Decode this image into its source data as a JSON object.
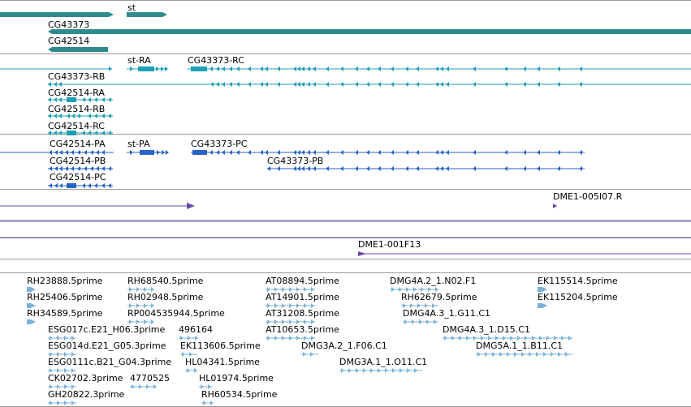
{
  "colors": {
    "gene": "#2e8b8b",
    "transcript": "#1ea0b4",
    "protein": "#2a63c8",
    "bac": "#6a49a8",
    "est": "#7ab3d8",
    "separator": "#9a9a9a"
  },
  "gene_labels": [
    "st",
    "CG43373",
    "CG42514"
  ],
  "transcript_labels": [
    "st-RA",
    "CG43373-RC",
    "CG43373-RB",
    "CG42514-RA",
    "CG42514-RB",
    "CG42514-RC"
  ],
  "protein_labels": [
    "CG42514-PA",
    "st-PA",
    "CG43373-PC",
    "CG42514-PB",
    "CG43373-PB",
    "CG42514-PC"
  ],
  "bac_labels": [
    "DME1-005I07.R",
    "DME1-001F13"
  ],
  "est_labels": [
    "RH23888.5prime",
    "RH68540.5prime",
    "AT08894.5prime",
    "DMG4A.2_1.N02.F1",
    "EK115514.5prime",
    "RH25406.5prime",
    "RH02948.5prime",
    "AT14901.5prime",
    "RH62679.5prime",
    "EK115204.5prime",
    "RH34589.5prime",
    "RP004535944.5prime",
    "AT31208.5prime",
    "DMG4A.3_1.G11.C1",
    "ESG017c.E21_H06.3prime",
    "496164",
    "AT10653.5prime",
    "DMG4A.3_1.D15.C1",
    "ESG014d.E21_G05.3prime",
    "EK113606.5prime",
    "DMG3A.2_1.F06.C1",
    "DMG5A.1_1.B11.C1",
    "ESG0111c.B21_G04.3prime",
    "HL04341.5prime",
    "DMG3A.1_1.O11.C1",
    "CK02702.3prime",
    "4770525",
    "HL01974.5prime",
    "GH20822.3prime",
    "RH60534.5prime"
  ]
}
